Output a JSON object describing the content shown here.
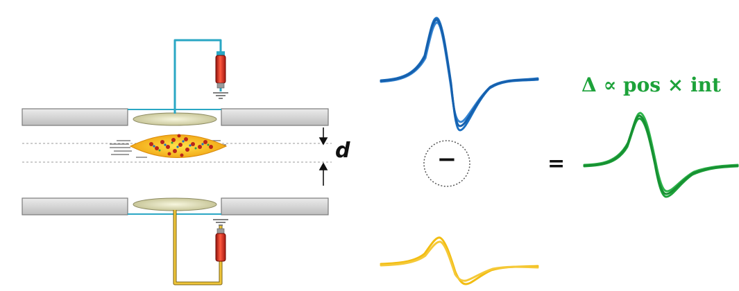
{
  "diagram": {
    "gap_label": "d",
    "operator_minus": "−",
    "operator_equals": "=",
    "formula": "Δ ∝ pos × int"
  },
  "colors": {
    "top_signal": "#1b6fc0",
    "bottom_signal": "#f2bd12",
    "result_signal": "#1da23a",
    "top_wire": "#2aa7c4",
    "bottom_wire": "#d4aa24",
    "resistor": "#d8261b",
    "electrode": "#e4e3bd",
    "channel_wall": "#c8c8c8"
  },
  "icons": [
    "ground-icon",
    "resistor-icon",
    "particle-icon"
  ]
}
